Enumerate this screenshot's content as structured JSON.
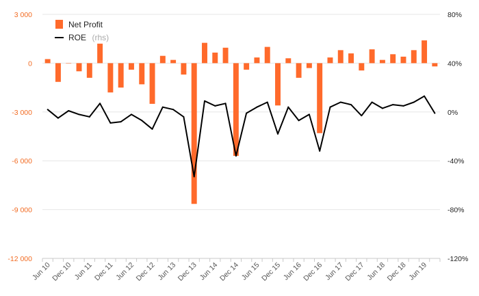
{
  "chart_data": {
    "type": "bar",
    "categories": [
      "Jun 10",
      "Sep 10",
      "Dec 10",
      "Mar 11",
      "Jun 11",
      "Sep 11",
      "Dec 11",
      "Mar 12",
      "Jun 12",
      "Sep 12",
      "Dec 12",
      "Mar 13",
      "Jun 13",
      "Sep 13",
      "Dec 13",
      "Mar 14",
      "Jun 14",
      "Sep 14",
      "Dec 14",
      "Mar 15",
      "Jun 15",
      "Sep 15",
      "Dec 15",
      "Mar 16",
      "Jun 16",
      "Sep 16",
      "Dec 16",
      "Mar 17",
      "Jun 17",
      "Sep 17",
      "Dec 17",
      "Mar 18",
      "Jun 18",
      "Sep 18",
      "Dec 18",
      "Mar 19",
      "Jun 19",
      "Sep 19"
    ],
    "x_tick_labels": [
      "Jun 10",
      "Dec 10",
      "Jun 11",
      "Dec 11",
      "Jun 12",
      "Dec 12",
      "Jun 13",
      "Dec 13",
      "Jun 14",
      "Dec 14",
      "Jun 15",
      "Dec 15",
      "Jun 16",
      "Dec 16",
      "Jun 17",
      "Dec 17",
      "Jun 18",
      "Dec 18",
      "Jun 19"
    ],
    "series": [
      {
        "name": "Net Profit",
        "axis": "left",
        "render": "bar",
        "color": "#ff6a2b",
        "values": [
          250,
          -1150,
          0,
          -500,
          -900,
          1200,
          -1800,
          -1500,
          -400,
          -1300,
          -2500,
          450,
          200,
          -700,
          -8650,
          1250,
          650,
          950,
          -5700,
          -400,
          350,
          1000,
          -2600,
          300,
          -900,
          -300,
          -4300,
          350,
          800,
          600,
          -450,
          850,
          200,
          550,
          400,
          800,
          1400,
          -200
        ]
      },
      {
        "name": "ROE",
        "name_note": "(rhs)",
        "axis": "right",
        "render": "line",
        "color": "#000000",
        "values": [
          2,
          -5,
          1,
          -2,
          -4,
          7,
          -9,
          -8,
          -2,
          -7,
          -14,
          4,
          2,
          -4,
          -53,
          9,
          5,
          7,
          -36,
          -1,
          4,
          8,
          -18,
          4,
          -7,
          -2,
          -32,
          4,
          8,
          6,
          -3,
          8,
          3,
          6,
          5,
          8,
          13,
          -1
        ]
      }
    ],
    "y_left": {
      "min": -12000,
      "max": 3000,
      "ticks": [
        3000,
        0,
        -3000,
        -6000,
        -9000,
        -12000
      ],
      "tick_labels": [
        "3 000",
        "0",
        "-3 000",
        "-6 000",
        "-9 000",
        "-12 000"
      ],
      "color": "#f26b22"
    },
    "y_right": {
      "min": -120,
      "max": 80,
      "ticks": [
        80,
        40,
        0,
        -40,
        -80,
        -120
      ],
      "tick_labels": [
        "80%",
        "40%",
        "0%",
        "-40%",
        "-80%",
        "-120%"
      ],
      "unit": "%"
    },
    "title": "",
    "grid": true,
    "legend_position": "top-left"
  }
}
